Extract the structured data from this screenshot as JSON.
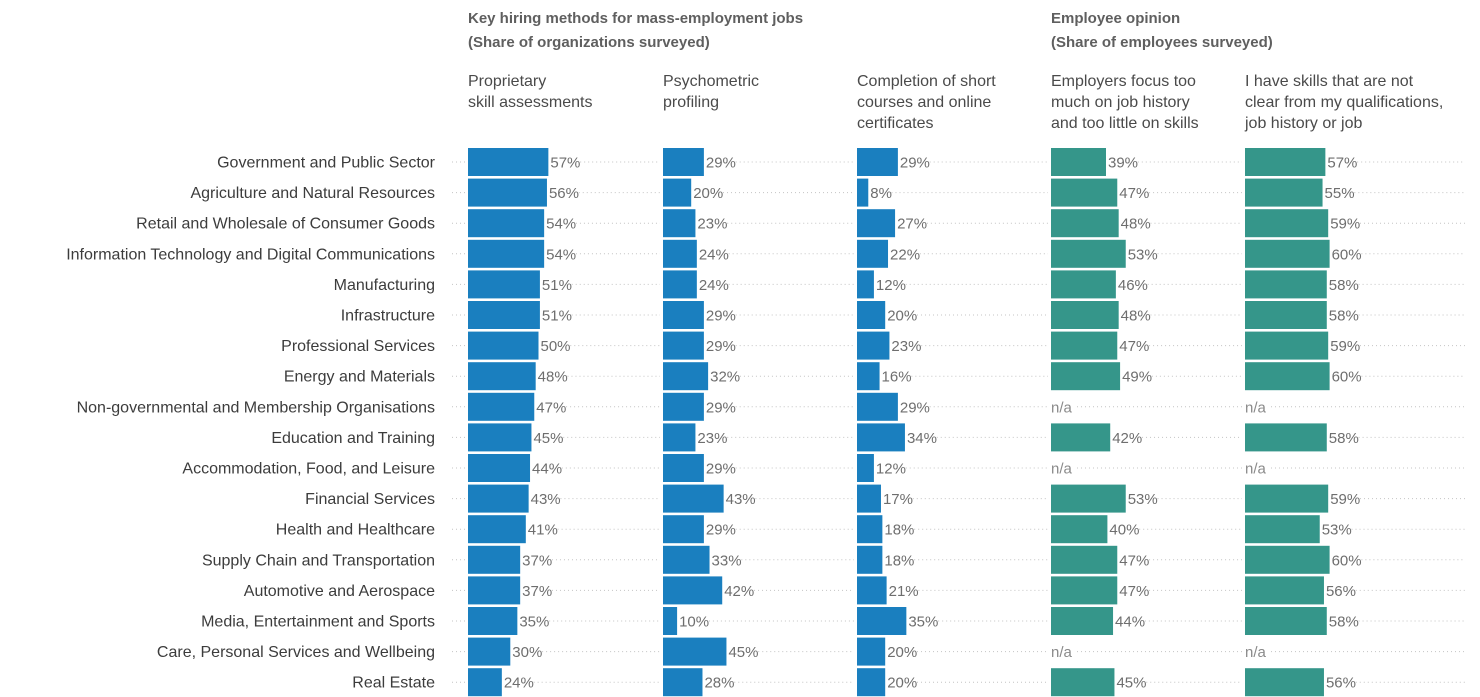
{
  "chart_data": {
    "type": "bar",
    "orientation": "horizontal",
    "groups": [
      {
        "title_line1": "Key hiring methods for mass-employment jobs",
        "title_line2": "(Share of organizations surveyed)",
        "color": "#1a7fbf"
      },
      {
        "title_line1": "Employee opinion",
        "title_line2": "(Share of employees surveyed)",
        "color": "#35968a"
      }
    ],
    "categories": [
      "Government and Public Sector",
      "Agriculture and Natural Resources",
      "Retail and Wholesale of Consumer Goods",
      "Information Technology and Digital Communications",
      "Manufacturing",
      "Infrastructure",
      "Professional Services",
      "Energy and Materials",
      "Non-governmental and Membership Organisations",
      "Education and Training",
      "Accommodation, Food, and Leisure",
      "Financial Services",
      "Health and Healthcare",
      "Supply Chain and Transportation",
      "Automotive and Aerospace",
      "Media, Entertainment and Sports",
      "Care, Personal Services and Wellbeing",
      "Real Estate"
    ],
    "series": [
      {
        "name": "Proprietary skill assessments",
        "title_lines": [
          "Proprietary",
          "skill assessments"
        ],
        "group": 0,
        "color": "#1a7fbf",
        "values": [
          57,
          56,
          54,
          54,
          51,
          51,
          50,
          48,
          47,
          45,
          44,
          43,
          41,
          37,
          37,
          35,
          30,
          24
        ]
      },
      {
        "name": "Psychometric profiling",
        "title_lines": [
          "Psychometric",
          "profiling"
        ],
        "group": 0,
        "color": "#1a7fbf",
        "values": [
          29,
          20,
          23,
          24,
          24,
          29,
          29,
          32,
          29,
          23,
          29,
          43,
          29,
          33,
          42,
          10,
          45,
          28
        ]
      },
      {
        "name": "Completion of short courses and online certificates",
        "title_lines": [
          "Completion of short",
          "courses and online",
          "certificates"
        ],
        "group": 0,
        "color": "#1a7fbf",
        "values": [
          29,
          8,
          27,
          22,
          12,
          20,
          23,
          16,
          29,
          34,
          12,
          17,
          18,
          18,
          21,
          35,
          20,
          20
        ]
      },
      {
        "name": "Employers focus too much on job history and too little on skills",
        "title_lines": [
          "Employers focus too",
          "much on job history",
          "and too little on skills"
        ],
        "group": 1,
        "color": "#35968a",
        "values": [
          39,
          47,
          48,
          53,
          46,
          48,
          47,
          49,
          null,
          42,
          null,
          53,
          40,
          47,
          47,
          44,
          null,
          45
        ]
      },
      {
        "name": "I have skills that are not clear from my qualifications, job history or job",
        "title_lines": [
          "I have skills that are not",
          "clear from my qualifications,",
          "job history or job"
        ],
        "group": 1,
        "color": "#35968a",
        "values": [
          57,
          55,
          59,
          60,
          58,
          58,
          59,
          60,
          null,
          58,
          null,
          59,
          53,
          60,
          56,
          58,
          null,
          56
        ]
      }
    ],
    "value_suffix": "%",
    "na_label": "n/a",
    "xlim": [
      0,
      100
    ],
    "grid": false,
    "legend": "none"
  }
}
